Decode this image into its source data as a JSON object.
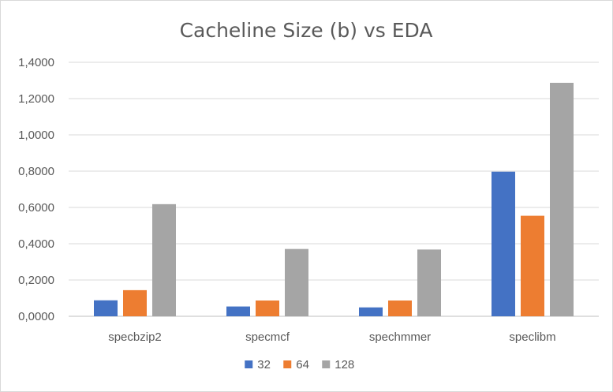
{
  "chart_data": {
    "type": "bar",
    "title": "Cacheline Size (b) vs EDA",
    "categories": [
      "specbzip2",
      "specmcf",
      "spechmmer",
      "speclibm"
    ],
    "series": [
      {
        "name": "32",
        "color": "#4472C4",
        "values": [
          0.088,
          0.054,
          0.049,
          0.797
        ]
      },
      {
        "name": "64",
        "color": "#ED7D31",
        "values": [
          0.144,
          0.087,
          0.087,
          0.554
        ]
      },
      {
        "name": "128",
        "color": "#A5A5A5",
        "values": [
          0.618,
          0.371,
          0.368,
          1.287
        ]
      }
    ],
    "ylim": [
      0,
      1.4
    ],
    "yticks": [
      "0,0000",
      "0,2000",
      "0,4000",
      "0,6000",
      "0,8000",
      "1,0000",
      "1,2000",
      "1,4000"
    ],
    "grid": true,
    "legend_position": "bottom"
  }
}
